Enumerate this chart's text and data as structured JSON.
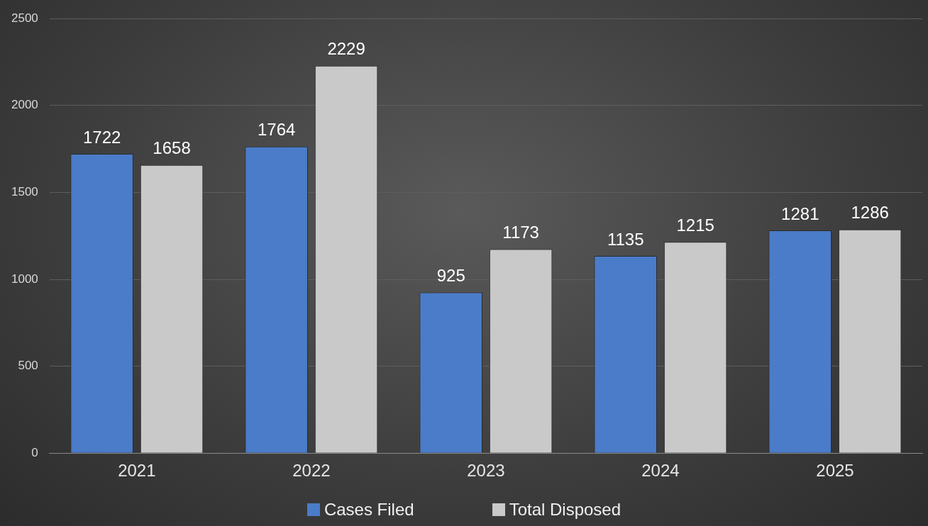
{
  "chart_data": {
    "type": "bar",
    "categories": [
      "2021",
      "2022",
      "2023",
      "2024",
      "2025"
    ],
    "series": [
      {
        "name": "Cases Filed",
        "color": "#4a7cc9",
        "values": [
          1722,
          1764,
          925,
          1135,
          1281
        ]
      },
      {
        "name": "Total Disposed",
        "color": "#c9c9c9",
        "values": [
          1658,
          2229,
          1173,
          1215,
          1286
        ]
      }
    ],
    "ylim": [
      0,
      2500
    ],
    "yticks": [
      0,
      500,
      1000,
      1500,
      2000,
      2500
    ],
    "grid": "y",
    "legend": "bottom",
    "data_labels": true
  }
}
